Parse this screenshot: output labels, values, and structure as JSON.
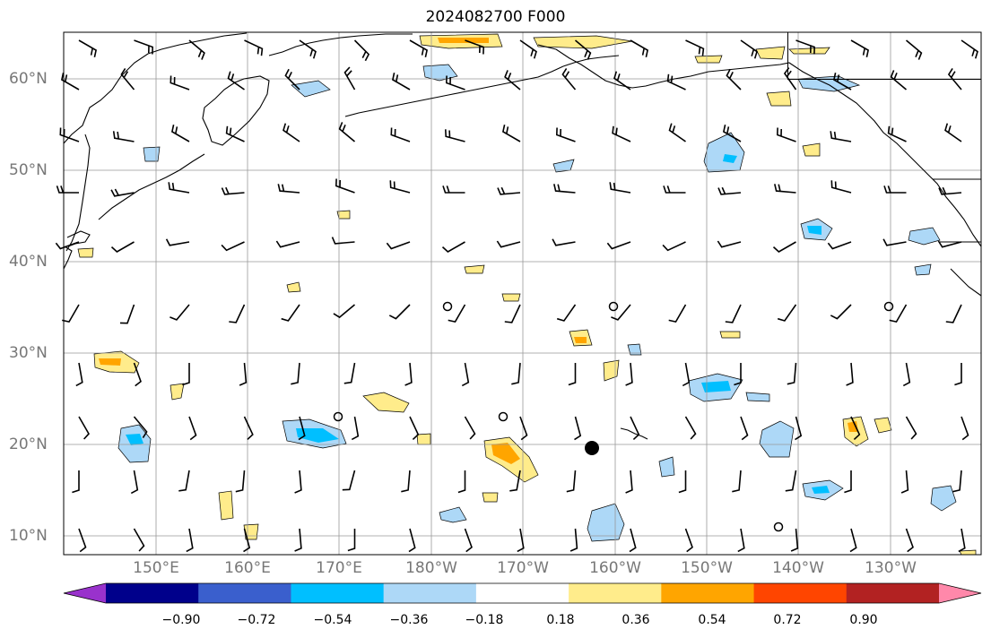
{
  "title": "2024082700 F000",
  "map": {
    "lat_labels": [
      "60°N",
      "50°N",
      "40°N",
      "30°N",
      "20°N",
      "10°N"
    ],
    "lon_labels": [
      "150°E",
      "160°E",
      "170°E",
      "180°W",
      "170°W",
      "160°W",
      "150°W",
      "140°W",
      "130°W"
    ],
    "lon_range": [
      140,
      240
    ],
    "lat_range": [
      8,
      65
    ]
  },
  "colorbar": {
    "tick_labels": [
      "−0.90",
      "−0.72",
      "−0.54",
      "−0.36",
      "−0.18",
      "0.18",
      "0.36",
      "0.54",
      "0.72",
      "0.90"
    ],
    "colors": [
      "#9932cc",
      "#00008b",
      "#3a5fcd",
      "#00bfff",
      "#add8f7",
      "#ffffff",
      "#ffec8b",
      "#ffa500",
      "#ff4500",
      "#b22222",
      "#ff88aa"
    ]
  },
  "colors": {
    "grid": "#999999",
    "coast": "#000000",
    "barb": "#000000"
  }
}
